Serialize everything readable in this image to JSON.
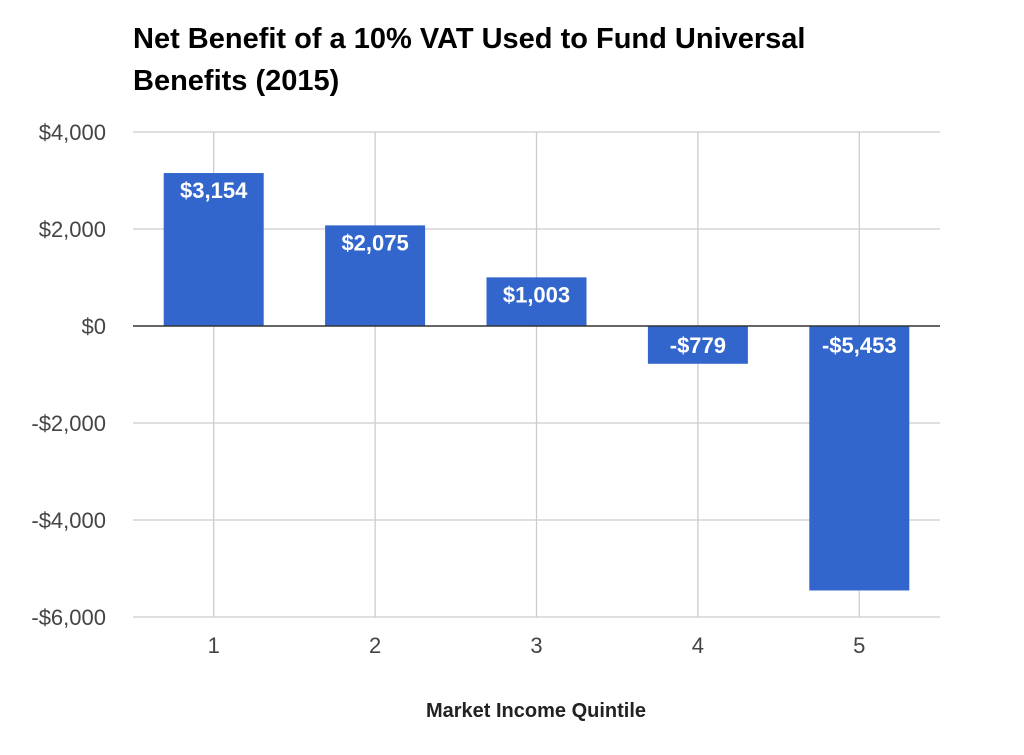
{
  "chart_data": {
    "type": "bar",
    "title": "Net Benefit of a 10% VAT Used to Fund Universal Benefits (2015)",
    "xlabel": "Market Income Quintile",
    "ylabel": "",
    "categories": [
      "1",
      "2",
      "3",
      "4",
      "5"
    ],
    "values": [
      3154,
      2075,
      1003,
      -779,
      -5453
    ],
    "value_labels": [
      "$3,154",
      "$2,075",
      "$1,003",
      "-$779",
      "-$5,453"
    ],
    "ylim": [
      -6000,
      4000
    ],
    "y_ticks": [
      {
        "value": 4000,
        "label": "$4,000"
      },
      {
        "value": 2000,
        "label": "$2,000"
      },
      {
        "value": 0,
        "label": "$0"
      },
      {
        "value": -2000,
        "label": "-$2,000"
      },
      {
        "value": -4000,
        "label": "-$4,000"
      },
      {
        "value": -6000,
        "label": "-$6,000"
      }
    ],
    "grid": true,
    "legend": "none",
    "bar_color": "#3366cc",
    "grid_color": "#cccccc",
    "zero_line_color": "#333333",
    "data_label_color": "#ffffff",
    "tick_label_color": "#444444"
  }
}
